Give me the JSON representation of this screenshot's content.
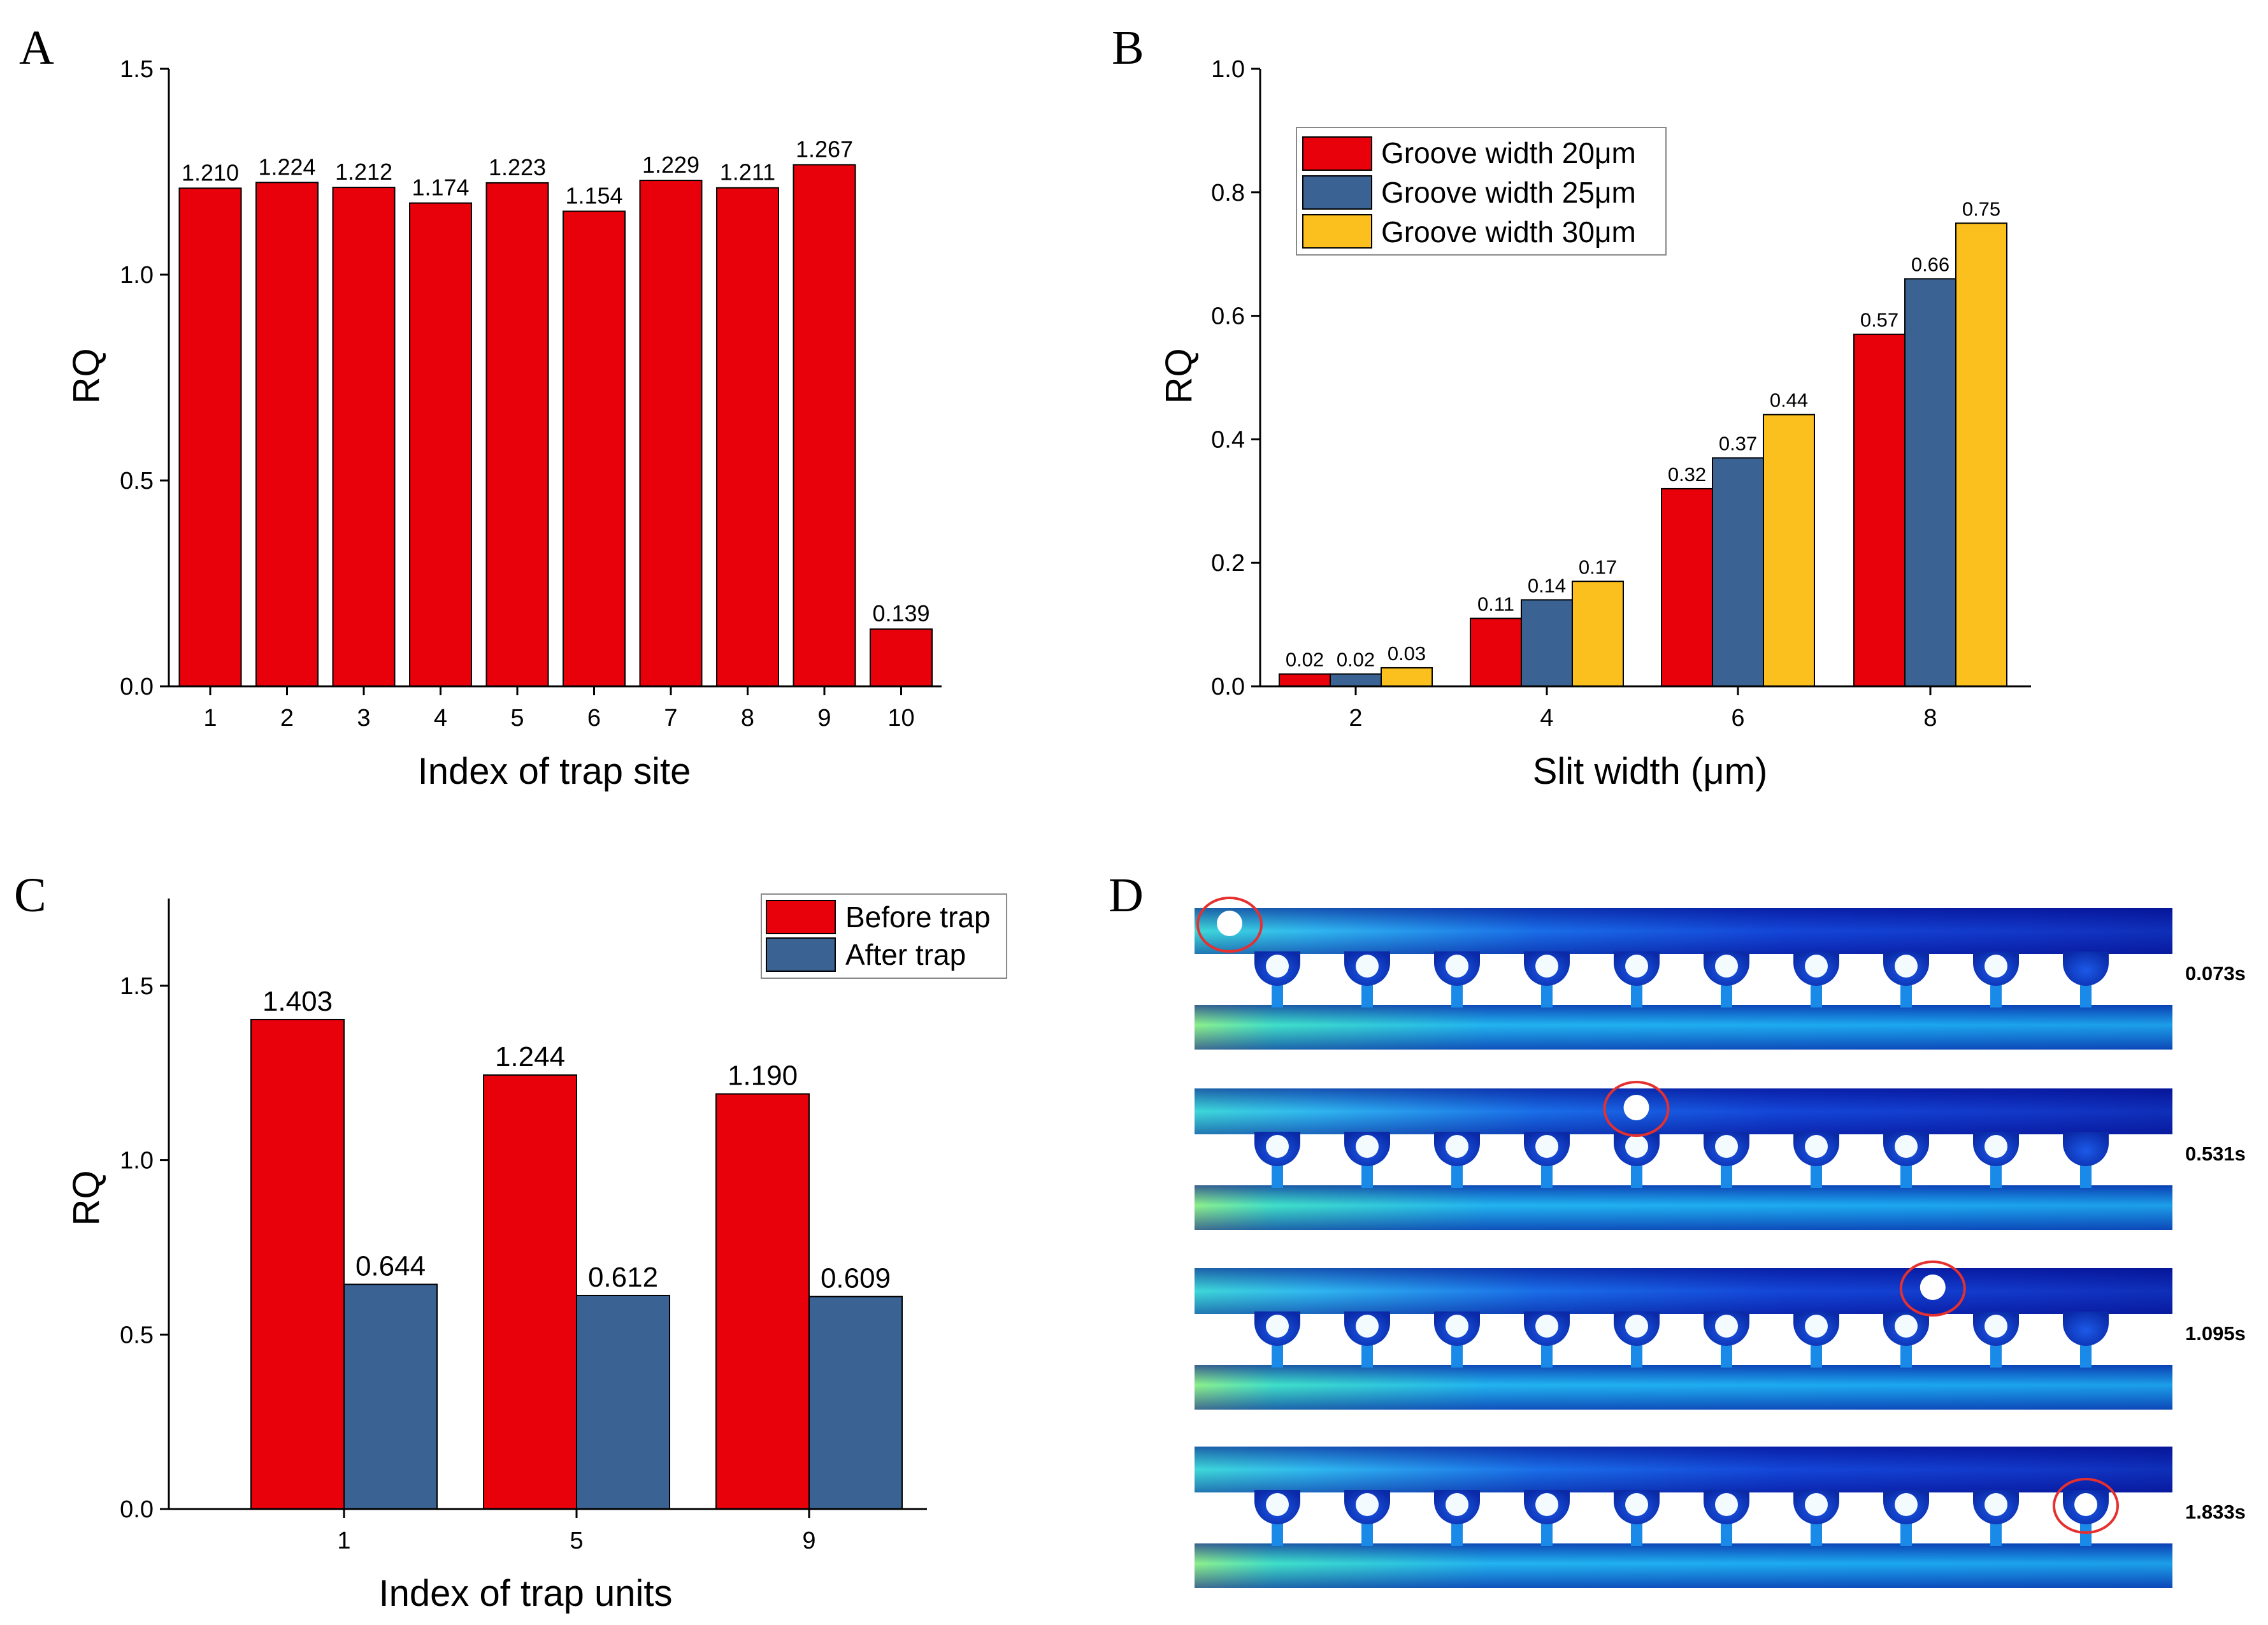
{
  "colors": {
    "red": "#e8000b",
    "blue": "#3a6394",
    "yellow": "#fcc01e",
    "axis": "#000000",
    "circle": "#e53030"
  },
  "chart_data": [
    {
      "panel": "A",
      "type": "bar",
      "xlabel": "Index of trap site",
      "ylabel": "RQ",
      "ylim": [
        0,
        1.5
      ],
      "yticks": [
        "0.0",
        "0.5",
        "1.0",
        "1.5"
      ],
      "categories": [
        "1",
        "2",
        "3",
        "4",
        "5",
        "6",
        "7",
        "8",
        "9",
        "10"
      ],
      "values": [
        1.21,
        1.224,
        1.212,
        1.174,
        1.223,
        1.154,
        1.229,
        1.211,
        1.267,
        0.139
      ],
      "data_labels": [
        "1.210",
        "1.224",
        "1.212",
        "1.174",
        "1.223",
        "1.154",
        "1.229",
        "1.211",
        "1.267",
        "0.139"
      ]
    },
    {
      "panel": "B",
      "type": "bar",
      "xlabel": "Slit width (μm)",
      "ylabel": "RQ",
      "ylim": [
        0,
        1.0
      ],
      "yticks": [
        "0.0",
        "0.2",
        "0.4",
        "0.6",
        "0.8",
        "1.0"
      ],
      "categories": [
        "2",
        "4",
        "6",
        "8"
      ],
      "legend_position": "top-left",
      "series": [
        {
          "name": "Groove width 20μm",
          "values": [
            0.02,
            0.11,
            0.32,
            0.57
          ],
          "labels": [
            "0.02",
            "0.11",
            "0.32",
            "0.57"
          ]
        },
        {
          "name": "Groove width 25μm",
          "values": [
            0.02,
            0.14,
            0.37,
            0.66
          ],
          "labels": [
            "0.02",
            "0.14",
            "0.37",
            "0.66"
          ]
        },
        {
          "name": "Groove width 30μm",
          "values": [
            0.03,
            0.17,
            0.44,
            0.75
          ],
          "labels": [
            "0.03",
            "0.17",
            "0.44",
            "0.75"
          ]
        }
      ]
    },
    {
      "panel": "C",
      "type": "bar",
      "xlabel": "Index of trap units",
      "ylabel": "RQ",
      "ylim": [
        0,
        1.75
      ],
      "yticks": [
        "0.0",
        "0.5",
        "1.0",
        "1.5"
      ],
      "categories": [
        "1",
        "5",
        "9"
      ],
      "legend_position": "top-right",
      "series": [
        {
          "name": "Before trap",
          "values": [
            1.403,
            1.244,
            1.19
          ],
          "labels": [
            "1.403",
            "1.244",
            "1.190"
          ]
        },
        {
          "name": "After trap",
          "values": [
            0.644,
            0.612,
            0.609
          ],
          "labels": [
            "0.644",
            "0.612",
            "0.609"
          ]
        }
      ]
    }
  ],
  "panel_d": {
    "letter": "D",
    "trap_count": 10,
    "frames": [
      {
        "time": "0.073s",
        "particle_position": 0
      },
      {
        "time": "0.531s",
        "particle_position": 4.5
      },
      {
        "time": "1.095s",
        "particle_position": 7.8
      },
      {
        "time": "1.833s",
        "particle_position": 10
      }
    ]
  }
}
